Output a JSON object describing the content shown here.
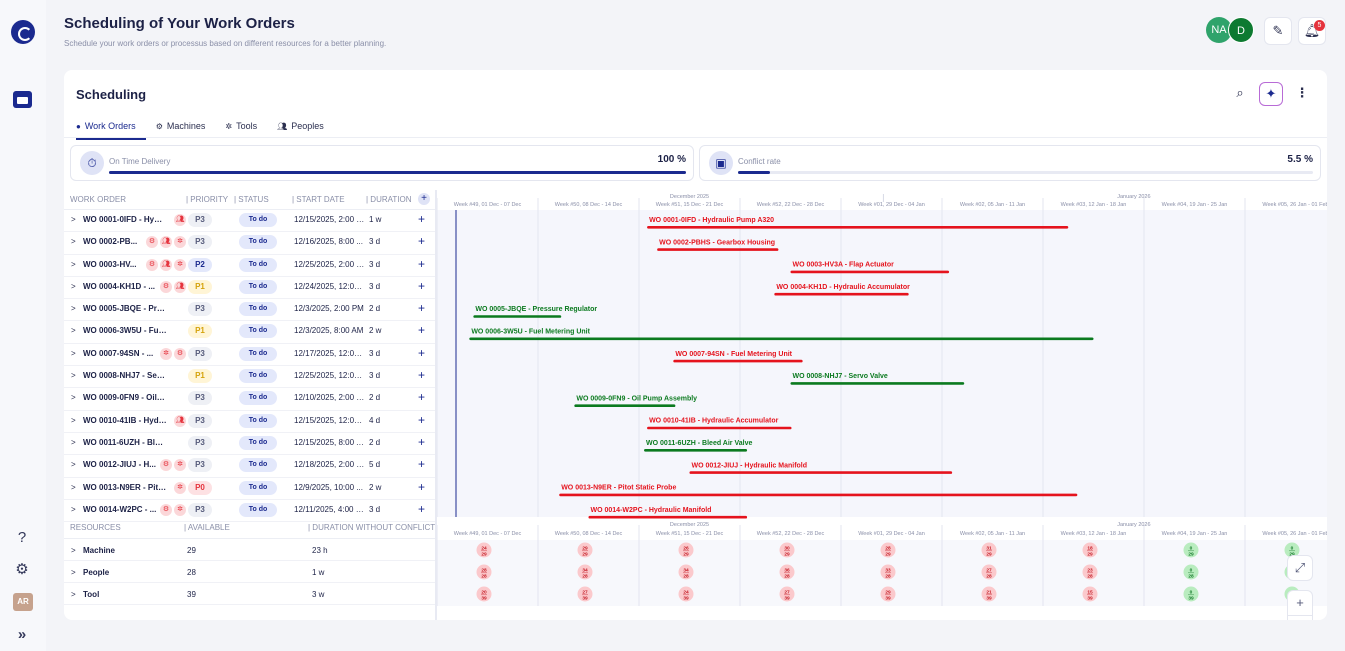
{
  "header": {
    "title": "Scheduling of Your Work Orders",
    "subtitle": "Schedule your work orders or processus based on different resources for a better planning.",
    "avatars": [
      "NA",
      "D"
    ],
    "notification_count": "5"
  },
  "rail": {
    "user_initials": "AR",
    "expand_glyph": "»"
  },
  "card": {
    "title": "Scheduling",
    "tabs": [
      {
        "label": "Work Orders",
        "icon": "pin-icon",
        "active": true
      },
      {
        "label": "Machines",
        "icon": "gear-icon",
        "active": false
      },
      {
        "label": "Tools",
        "icon": "cog-icon",
        "active": false
      },
      {
        "label": "Peoples",
        "icon": "people-icon",
        "active": false
      }
    ]
  },
  "kpis": {
    "on_time": {
      "label": "On Time Delivery",
      "value": "100 %",
      "fraction": 1.0
    },
    "conflict": {
      "label": "Conflict rate",
      "value": "5.5 %",
      "fraction": 0.055
    }
  },
  "table": {
    "headers": {
      "work_order": "WORK ORDER",
      "priority": "| PRIORITY",
      "status": "| STATUS",
      "start_date": "| START DATE",
      "duration": "| DURATION ("
    },
    "rows": [
      {
        "name": "WO 0001-0IFD - Hydr...",
        "icons": [
          "people-icon"
        ],
        "priority": "P3",
        "status": "To do",
        "start": "12/15/2025, 2:00 PM",
        "duration": "1 w"
      },
      {
        "name": "WO 0002-PB...",
        "icons": [
          "gear-icon",
          "people-icon",
          "cog-icon"
        ],
        "priority": "P3",
        "status": "To do",
        "start": "12/16/2025, 8:00 ...",
        "duration": "3 d"
      },
      {
        "name": "WO 0003-HV...",
        "icons": [
          "gear-icon",
          "people-icon",
          "cog-icon"
        ],
        "priority": "P2",
        "status": "To do",
        "start": "12/25/2025, 2:00 P...",
        "duration": "3 d"
      },
      {
        "name": "WO 0004-KH1D - ...",
        "icons": [
          "gear-icon",
          "people-icon"
        ],
        "priority": "P1",
        "status": "To do",
        "start": "12/24/2025, 12:00 ...",
        "duration": "3 d"
      },
      {
        "name": "WO 0005-JBQE - Pressure ...",
        "icons": [],
        "priority": "P3",
        "status": "To do",
        "start": "12/3/2025, 2:00 PM",
        "duration": "2 d"
      },
      {
        "name": "WO 0006-3W5U - Fuel Met...",
        "icons": [],
        "priority": "P1",
        "status": "To do",
        "start": "12/3/2025, 8:00 AM",
        "duration": "2 w"
      },
      {
        "name": "WO 0007-94SN - ...",
        "icons": [
          "cog-icon",
          "gear-icon"
        ],
        "priority": "P3",
        "status": "To do",
        "start": "12/17/2025, 12:00 ...",
        "duration": "3 d"
      },
      {
        "name": "WO 0008-NHJ7 - Servo Valve",
        "icons": [],
        "priority": "P1",
        "status": "To do",
        "start": "12/25/2025, 12:00 ...",
        "duration": "3 d"
      },
      {
        "name": "WO 0009-0FN9 - Oil Pump ...",
        "icons": [],
        "priority": "P3",
        "status": "To do",
        "start": "12/10/2025, 2:00 P...",
        "duration": "2 d"
      },
      {
        "name": "WO 0010-41IB - Hydra...",
        "icons": [
          "people-icon"
        ],
        "priority": "P3",
        "status": "To do",
        "start": "12/15/2025, 12:00 ...",
        "duration": "4 d"
      },
      {
        "name": "WO 0011-6UZH - Bleed Air ...",
        "icons": [],
        "priority": "P3",
        "status": "To do",
        "start": "12/15/2025, 8:00 A...",
        "duration": "2 d"
      },
      {
        "name": "WO 0012-JIUJ - H...",
        "icons": [
          "gear-icon",
          "cog-icon"
        ],
        "priority": "P3",
        "status": "To do",
        "start": "12/18/2025, 2:00 P...",
        "duration": "5 d"
      },
      {
        "name": "WO 0013-N9ER - Pitot...",
        "icons": [
          "cog-icon"
        ],
        "priority": "P0",
        "status": "To do",
        "start": "12/9/2025, 10:00 ...",
        "duration": "2 w"
      },
      {
        "name": "WO 0014-W2PC - ...",
        "icons": [
          "gear-icon",
          "cog-icon"
        ],
        "priority": "P3",
        "status": "To do",
        "start": "12/11/2025, 4:00 PM",
        "duration": "3 d"
      }
    ]
  },
  "resources": {
    "headers": {
      "resources": "RESOURCES",
      "available": "| AVAILABLE",
      "duration": "| DURATION WITHOUT CONFLICT"
    },
    "rows": [
      {
        "name": "Machine",
        "available": "29",
        "duration": "23 h"
      },
      {
        "name": "People",
        "available": "28",
        "duration": "1 w"
      },
      {
        "name": "Tool",
        "available": "39",
        "duration": "3 w"
      }
    ]
  },
  "gantt": {
    "month_labels": [
      "December 2025",
      "January 2026"
    ],
    "weeks": [
      "Week #49, 01 Dec - 07 Dec",
      "Week #50, 08 Dec - 14 Dec",
      "Week #51, 15 Dec - 21 Dec",
      "Week #52, 22 Dec - 28 Dec",
      "Week #01, 29 Dec - 04 Jan",
      "Week #02, 05 Jan - 11 Jan",
      "Week #03, 12 Jan - 18 Jan",
      "Week #04, 19 Jan - 25 Jan",
      "Week #05, 26 Jan - 01 Feb"
    ],
    "bars": [
      {
        "label": "WO 0001-0IFD - Hydraulic Pump A320",
        "start_week": 2.08,
        "end_week": 6.25,
        "status": "conflict"
      },
      {
        "label": "WO 0002-PBHS - Gearbox Housing",
        "start_week": 2.18,
        "end_week": 3.38,
        "status": "conflict"
      },
      {
        "label": "WO 0003-HV3A - Flap Actuator",
        "start_week": 3.5,
        "end_week": 5.07,
        "status": "conflict"
      },
      {
        "label": "WO 0004-KH1D - Hydraulic Accumulator",
        "start_week": 3.34,
        "end_week": 4.67,
        "status": "conflict"
      },
      {
        "label": "WO 0005-JBQE - Pressure Regulator",
        "start_week": 0.36,
        "end_week": 1.23,
        "status": "ok"
      },
      {
        "label": "WO 0006-3W5U - Fuel Metering Unit",
        "start_week": 0.32,
        "end_week": 6.5,
        "status": "ok"
      },
      {
        "label": "WO 0007-94SN - Fuel Metering Unit",
        "start_week": 2.34,
        "end_week": 3.62,
        "status": "conflict"
      },
      {
        "label": "WO 0008-NHJ7 - Servo Valve",
        "start_week": 3.5,
        "end_week": 5.22,
        "status": "ok"
      },
      {
        "label": "WO 0009-0FN9 - Oil Pump Assembly",
        "start_week": 1.36,
        "end_week": 2.36,
        "status": "ok"
      },
      {
        "label": "WO 0010-41IB - Hydraulic Accumulator",
        "start_week": 2.08,
        "end_week": 3.51,
        "status": "conflict"
      },
      {
        "label": "WO 0011-6UZH - Bleed Air Valve",
        "start_week": 2.05,
        "end_week": 3.07,
        "status": "ok"
      },
      {
        "label": "WO 0012-JIUJ - Hydraulic Manifold",
        "start_week": 2.5,
        "end_week": 5.1,
        "status": "conflict"
      },
      {
        "label": "WO 0013-N9ER - Pitot Static Probe",
        "start_week": 1.21,
        "end_week": 6.34,
        "status": "conflict"
      },
      {
        "label": "WO 0014-W2PC - Hydraulic Manifold",
        "start_week": 1.5,
        "end_week": 3.07,
        "status": "conflict"
      }
    ],
    "resource_load": [
      [
        {
          "top": "24",
          "bottom": "29"
        },
        {
          "top": "29",
          "bottom": "29"
        },
        {
          "top": "26",
          "bottom": "29"
        },
        {
          "top": "30",
          "bottom": "29"
        },
        {
          "top": "28",
          "bottom": "29"
        },
        {
          "top": "31",
          "bottom": "29"
        },
        {
          "top": "18",
          "bottom": "29"
        },
        {
          "top": "0",
          "bottom": "29"
        },
        {
          "top": "0",
          "bottom": "29"
        }
      ],
      [
        {
          "top": "28",
          "bottom": "28"
        },
        {
          "top": "34",
          "bottom": "28"
        },
        {
          "top": "34",
          "bottom": "28"
        },
        {
          "top": "36",
          "bottom": "28"
        },
        {
          "top": "33",
          "bottom": "28"
        },
        {
          "top": "27",
          "bottom": "28"
        },
        {
          "top": "23",
          "bottom": "28"
        },
        {
          "top": "0",
          "bottom": "28"
        },
        {
          "top": "0",
          "bottom": "28"
        }
      ],
      [
        {
          "top": "20",
          "bottom": "39"
        },
        {
          "top": "27",
          "bottom": "39"
        },
        {
          "top": "24",
          "bottom": "39"
        },
        {
          "top": "27",
          "bottom": "39"
        },
        {
          "top": "29",
          "bottom": "39"
        },
        {
          "top": "21",
          "bottom": "39"
        },
        {
          "top": "15",
          "bottom": "39"
        },
        {
          "top": "0",
          "bottom": "39"
        },
        {
          "top": "0",
          "bottom": "39"
        }
      ]
    ],
    "colors": {
      "conflict": "#e5131d",
      "ok": "#0b7a1f",
      "accent": "#1b2a8f"
    }
  }
}
